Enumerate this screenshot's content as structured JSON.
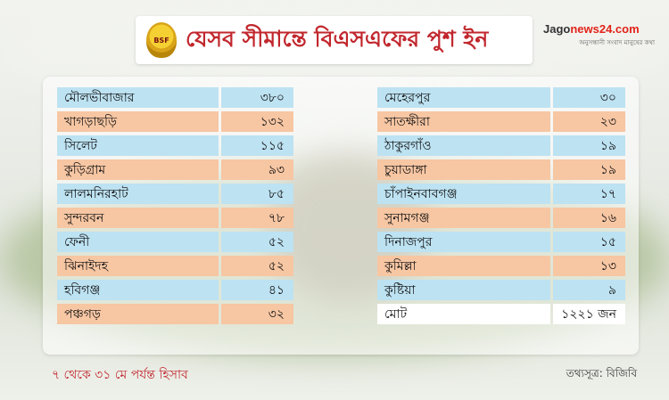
{
  "header": {
    "badge_text": "BSF",
    "title": "যেসব সীমান্তে বিএসএফের পুশ ইন"
  },
  "logo": {
    "brand_prefix": "Jago",
    "brand_suffix": "news24.com",
    "tagline": "অনুসন্ধানী সংবাদ মানুষের কথা"
  },
  "table_left": [
    {
      "name": "মৌলভীবাজার",
      "value": "৩৮০",
      "color": "blue"
    },
    {
      "name": "খাগড়াছড়ি",
      "value": "১৩২",
      "color": "orange"
    },
    {
      "name": "সিলেট",
      "value": "১১৫",
      "color": "blue"
    },
    {
      "name": "কুড়িগ্রাম",
      "value": "৯৩",
      "color": "orange"
    },
    {
      "name": "লালমনিরহাট",
      "value": "৮৫",
      "color": "blue"
    },
    {
      "name": "সুন্দরবন",
      "value": "৭৮",
      "color": "orange"
    },
    {
      "name": "ফেনী",
      "value": "৫২",
      "color": "blue"
    },
    {
      "name": "ঝিনাইদহ",
      "value": "৫২",
      "color": "orange"
    },
    {
      "name": "হবিগঞ্জ",
      "value": "৪১",
      "color": "blue"
    },
    {
      "name": "পঞ্চগড়",
      "value": "৩২",
      "color": "orange"
    }
  ],
  "table_right": [
    {
      "name": "মেহেরপুর",
      "value": "৩০",
      "color": "blue"
    },
    {
      "name": "সাতক্ষীরা",
      "value": "২৩",
      "color": "orange"
    },
    {
      "name": "ঠাকুরগাঁও",
      "value": "১৯",
      "color": "blue"
    },
    {
      "name": "চুয়াডাঙ্গা",
      "value": "১৯",
      "color": "orange"
    },
    {
      "name": "চাঁপাইনবাবগঞ্জ",
      "value": "১৭",
      "color": "blue"
    },
    {
      "name": "সুনামগঞ্জ",
      "value": "১৬",
      "color": "orange"
    },
    {
      "name": "দিনাজপুর",
      "value": "১৫",
      "color": "blue"
    },
    {
      "name": "কুমিল্লা",
      "value": "১৩",
      "color": "orange"
    },
    {
      "name": "কুষ্টিয়া",
      "value": "৯",
      "color": "blue"
    },
    {
      "name": "মোট",
      "value": "১২২১ জন",
      "color": "total"
    }
  ],
  "footer": {
    "note": "৭ থেকে ৩১ মে পর্যন্ত হিসাব",
    "source": "তথ্যসূত্র: বিজিবি"
  },
  "colors": {
    "title_red": "#c1272d",
    "row_blue": "#bde2f2",
    "row_orange": "#f7c6a3"
  }
}
